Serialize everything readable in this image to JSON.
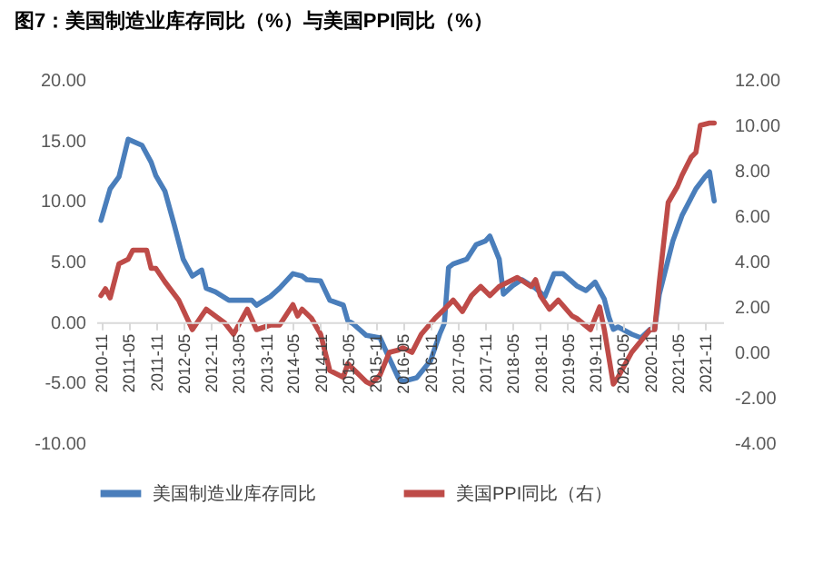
{
  "chart_data": {
    "type": "line",
    "title": "图7：美国制造业库存同比（%）与美国PPI同比（%）",
    "xlim": [
      "2010-10",
      "2022-03"
    ],
    "xticks": [
      "2010-11",
      "2011-05",
      "2011-11",
      "2012-05",
      "2012-11",
      "2013-05",
      "2013-11",
      "2014-05",
      "2014-11",
      "2015-05",
      "2015-11",
      "2016-05",
      "2016-11",
      "2017-05",
      "2017-11",
      "2018-05",
      "2018-11",
      "2019-05",
      "2019-11",
      "2020-05",
      "2020-11",
      "2021-05",
      "2021-11"
    ],
    "ylim": [
      -10,
      20
    ],
    "yticks": [
      {
        "value": -10,
        "label": "-10.00"
      },
      {
        "value": -5,
        "label": "-5.00"
      },
      {
        "value": 0,
        "label": "0.00"
      },
      {
        "value": 5,
        "label": "5.00"
      },
      {
        "value": 10,
        "label": "10.00"
      },
      {
        "value": 15,
        "label": "15.00"
      },
      {
        "value": 20,
        "label": "20.00"
      }
    ],
    "y2lim": [
      -4,
      12
    ],
    "y2ticks": [
      {
        "value": -4,
        "label": "-4.00"
      },
      {
        "value": -2,
        "label": "-2.00"
      },
      {
        "value": 0,
        "label": "0.00"
      },
      {
        "value": 2,
        "label": "2.00"
      },
      {
        "value": 4,
        "label": "4.00"
      },
      {
        "value": 6,
        "label": "6.00"
      },
      {
        "value": 8,
        "label": "8.00"
      },
      {
        "value": 10,
        "label": "10.00"
      },
      {
        "value": 12,
        "label": "12.00"
      }
    ],
    "legend": "bottom",
    "grid": false,
    "marker": "none",
    "line_style": "solid",
    "series": [
      {
        "name": "美国制造业库存同比",
        "color": "#4a7ebb",
        "x": [
          "2010-11",
          "2011-01",
          "2011-03",
          "2011-05",
          "2011-08",
          "2011-10",
          "2011-11",
          "2012-01",
          "2012-03",
          "2012-05",
          "2012-07",
          "2012-09",
          "2012-10",
          "2012-12",
          "2013-03",
          "2013-08",
          "2013-09",
          "2013-12",
          "2014-02",
          "2014-05",
          "2014-07",
          "2014-08",
          "2014-11",
          "2015-01",
          "2015-04",
          "2015-05",
          "2015-06",
          "2015-09",
          "2015-12",
          "2016-02",
          "2016-04",
          "2016-05",
          "2016-08",
          "2016-11",
          "2017-01",
          "2017-02",
          "2017-03",
          "2017-04",
          "2017-07",
          "2017-09",
          "2017-11",
          "2017-12",
          "2018-02",
          "2018-03",
          "2018-05",
          "2018-07",
          "2018-10",
          "2018-12",
          "2019-02",
          "2019-04",
          "2019-07",
          "2019-09",
          "2019-11",
          "2020-01",
          "2020-02",
          "2020-03",
          "2020-04",
          "2020-07",
          "2020-09",
          "2020-11",
          "2020-12",
          "2021-01",
          "2021-04",
          "2021-06",
          "2021-09",
          "2021-11",
          "2021-12",
          "2022-01"
        ],
        "values": [
          8.4,
          11.0,
          12.0,
          15.1,
          14.6,
          13.2,
          12.1,
          10.8,
          8.1,
          5.2,
          3.8,
          4.3,
          2.8,
          2.5,
          1.8,
          1.8,
          1.4,
          2.1,
          2.8,
          4.0,
          3.8,
          3.5,
          3.4,
          1.8,
          1.4,
          0.1,
          -0.1,
          -1.1,
          -1.3,
          -3.0,
          -4.6,
          -4.9,
          -4.6,
          -3.2,
          -1.0,
          -0.1,
          4.5,
          4.8,
          5.2,
          6.4,
          6.7,
          7.1,
          5.2,
          2.3,
          3.0,
          3.5,
          2.8,
          2.1,
          4.0,
          4.0,
          3.0,
          2.6,
          3.3,
          1.9,
          0.4,
          -0.6,
          -0.4,
          -1.0,
          -1.3,
          -0.6,
          -0.6,
          2.3,
          6.7,
          8.8,
          11.0,
          12.0,
          12.4,
          10.0
        ]
      },
      {
        "name": "美国PPI同比（右）",
        "color": "#be4b48",
        "axis": "y2",
        "x": [
          "2010-11",
          "2010-12",
          "2011-01",
          "2011-03",
          "2011-05",
          "2011-06",
          "2011-09",
          "2011-10",
          "2011-11",
          "2012-01",
          "2012-04",
          "2012-07",
          "2012-10",
          "2012-12",
          "2013-02",
          "2013-04",
          "2013-07",
          "2013-09",
          "2013-12",
          "2014-02",
          "2014-05",
          "2014-06",
          "2014-07",
          "2014-09",
          "2014-11",
          "2015-01",
          "2015-04",
          "2015-05",
          "2015-09",
          "2015-10",
          "2015-12",
          "2016-02",
          "2016-04",
          "2016-05",
          "2016-07",
          "2016-09",
          "2016-12",
          "2017-02",
          "2017-04",
          "2017-06",
          "2017-08",
          "2017-10",
          "2017-12",
          "2018-02",
          "2018-06",
          "2018-09",
          "2018-10",
          "2018-11",
          "2019-01",
          "2019-03",
          "2019-06",
          "2019-07",
          "2019-10",
          "2019-12",
          "2020-01",
          "2020-03",
          "2020-04",
          "2020-07",
          "2020-09",
          "2020-11",
          "2020-12",
          "2021-01",
          "2021-03",
          "2021-05",
          "2021-06",
          "2021-08",
          "2021-09",
          "2021-10",
          "2021-12",
          "2022-01"
        ],
        "values": [
          2.5,
          2.8,
          2.4,
          3.9,
          4.1,
          4.5,
          4.5,
          3.7,
          3.7,
          3.1,
          2.3,
          1.0,
          1.9,
          1.6,
          1.3,
          0.8,
          1.9,
          1.0,
          1.2,
          1.2,
          2.1,
          1.6,
          1.9,
          1.5,
          0.8,
          -0.8,
          -1.1,
          -0.5,
          -1.3,
          -1.4,
          -1.0,
          0.0,
          0.1,
          0.2,
          0.0,
          0.8,
          1.5,
          1.9,
          2.3,
          1.8,
          2.5,
          2.9,
          2.5,
          2.9,
          3.3,
          2.9,
          3.2,
          2.5,
          1.9,
          2.3,
          1.6,
          1.5,
          1.0,
          2.0,
          1.0,
          -1.4,
          -1.1,
          0.0,
          0.5,
          1.0,
          1.0,
          3.1,
          6.6,
          7.3,
          7.8,
          8.6,
          8.8,
          10.0,
          10.1,
          10.1
        ]
      }
    ]
  }
}
